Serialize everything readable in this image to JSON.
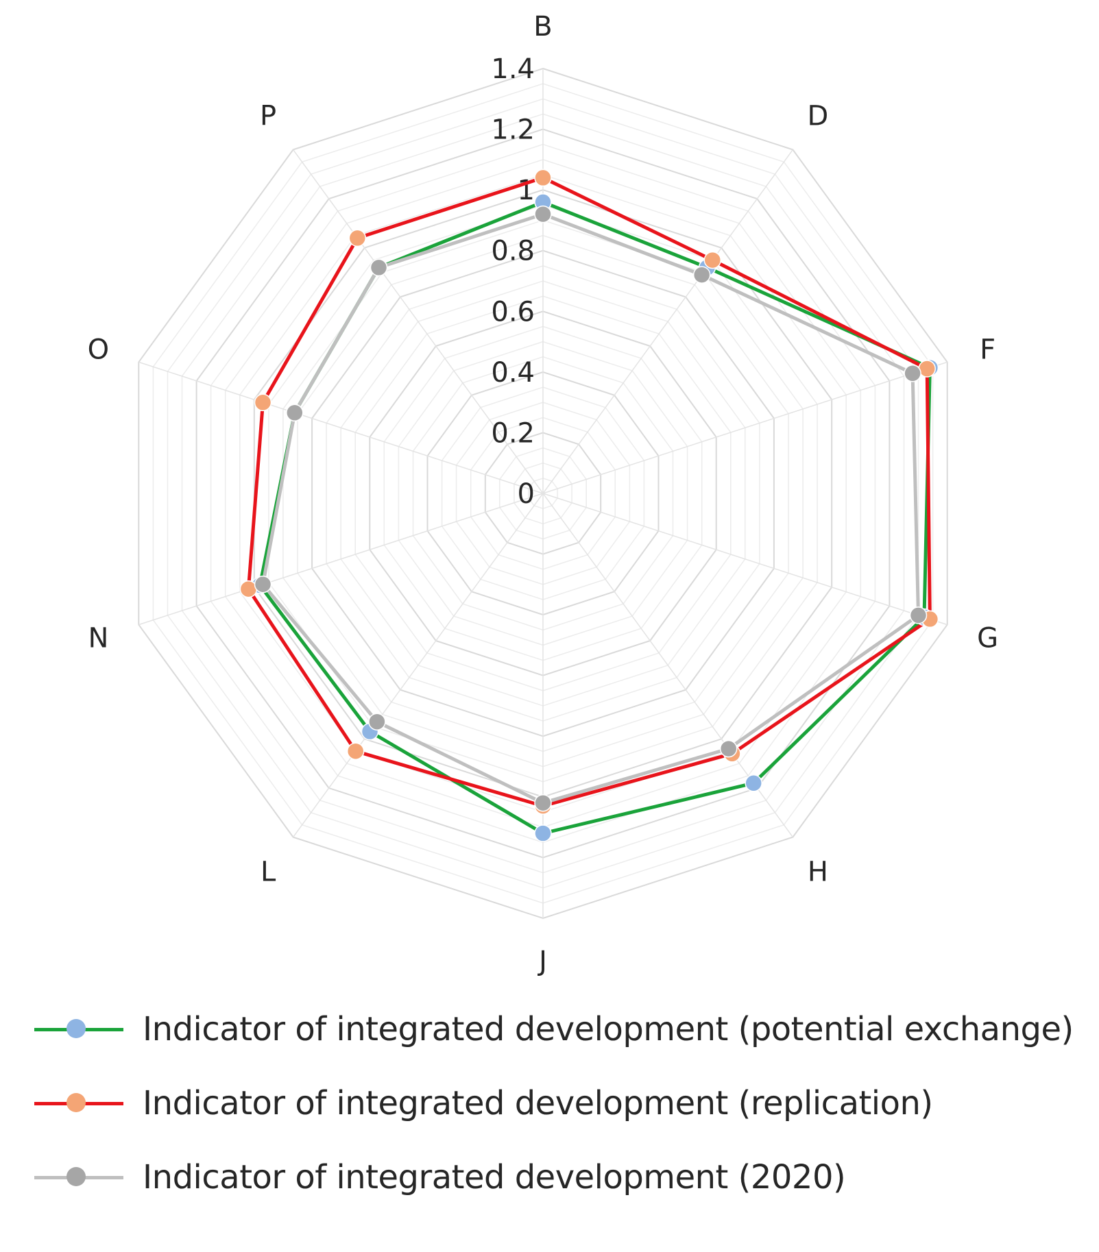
{
  "chart_data": {
    "type": "radar",
    "title": "",
    "categories": [
      "B",
      "D",
      "F",
      "G",
      "H",
      "J",
      "L",
      "N",
      "O",
      "P"
    ],
    "rlim": [
      0,
      1.4
    ],
    "ticks": [
      "0",
      "0.2",
      "0.4",
      "0.6",
      "0.8",
      "1",
      "1.2",
      "1.4"
    ],
    "tick_values": [
      0,
      0.2,
      0.4,
      0.6,
      0.8,
      1,
      1.2,
      1.4
    ],
    "minor_step": 0.05,
    "legend_position": "bottom",
    "series": [
      {
        "name": "Indicator of integrated development (potential exchange)",
        "line_color": "#1aa33a",
        "marker_color": "#8eb4e3",
        "values": [
          0.96,
          0.92,
          1.34,
          1.32,
          1.18,
          1.12,
          0.97,
          0.98,
          0.86,
          0.92
        ]
      },
      {
        "name": "Indicator of integrated development (replication)",
        "line_color": "#e8141b",
        "marker_color": "#f4a575",
        "values": [
          1.04,
          0.95,
          1.33,
          1.34,
          1.06,
          1.03,
          1.05,
          1.02,
          0.97,
          1.04
        ]
      },
      {
        "name": "Indicator of integrated development (2020)",
        "line_color": "#bfbfbf",
        "marker_color": "#a6a6a6",
        "values": [
          0.92,
          0.89,
          1.28,
          1.3,
          1.04,
          1.02,
          0.93,
          0.97,
          0.86,
          0.92
        ]
      }
    ]
  }
}
